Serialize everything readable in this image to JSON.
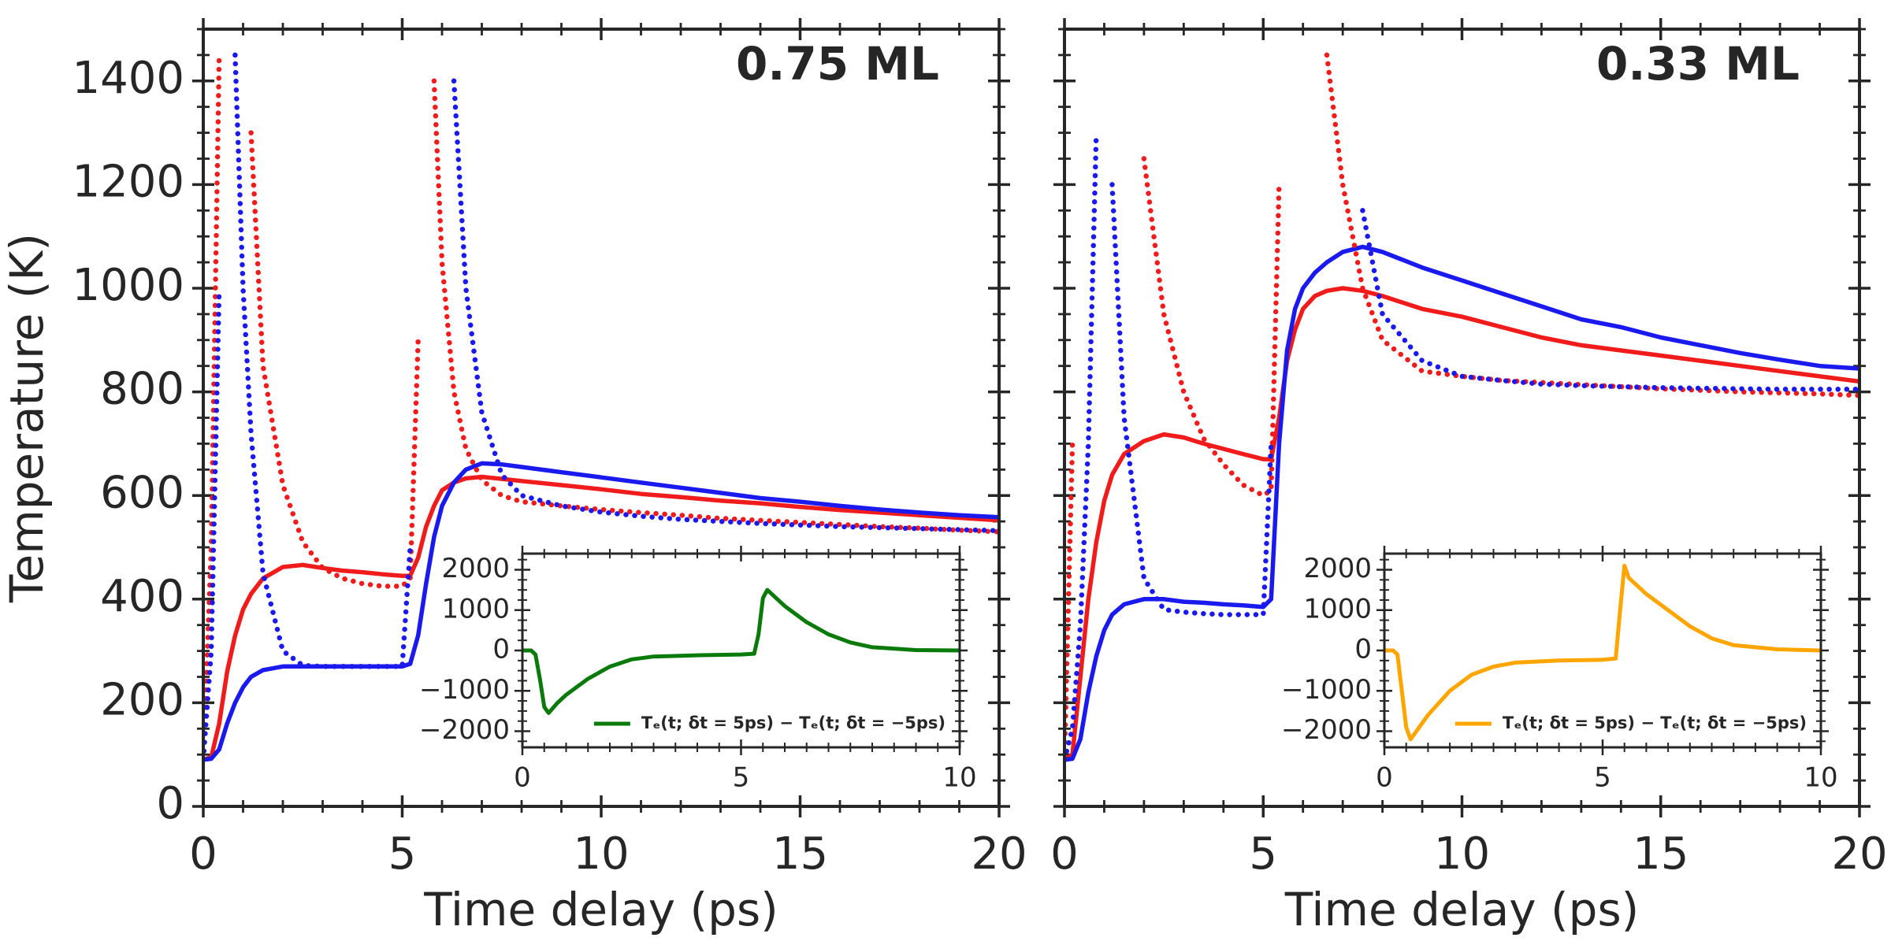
{
  "chart_data": [
    {
      "type": "line",
      "annotation": "0.75 ML",
      "xlabel": "Time delay (ps)",
      "ylabel": "Temperature (K)",
      "xlim": [
        0,
        20
      ],
      "ylim": [
        0,
        1500
      ],
      "xticks": [
        0,
        5,
        10,
        15,
        20
      ],
      "yticks": [
        0,
        200,
        400,
        600,
        800,
        1000,
        1200,
        1400
      ],
      "x": [
        0,
        0.2,
        0.4,
        0.6,
        0.8,
        1.0,
        1.2,
        1.5,
        2,
        2.5,
        3,
        3.5,
        4,
        4.5,
        5,
        5.2,
        5.4,
        5.6,
        5.8,
        6,
        6.3,
        6.6,
        7,
        7.5,
        8,
        9,
        10,
        11,
        12,
        13,
        14,
        15,
        16,
        17,
        18,
        19,
        20
      ],
      "series": [
        {
          "color": "#f01c1c",
          "style": "solid",
          "values": [
            90,
            95,
            160,
            260,
            330,
            380,
            410,
            440,
            462,
            466,
            460,
            455,
            452,
            448,
            445,
            445,
            480,
            540,
            580,
            610,
            625,
            633,
            636,
            632,
            628,
            620,
            612,
            603,
            597,
            590,
            585,
            578,
            572,
            567,
            562,
            557,
            552
          ]
        },
        {
          "color": "#1a1aee",
          "style": "solid",
          "values": [
            90,
            92,
            110,
            160,
            200,
            230,
            250,
            263,
            270,
            270,
            270,
            270,
            270,
            270,
            270,
            275,
            330,
            430,
            520,
            580,
            625,
            650,
            662,
            660,
            655,
            645,
            635,
            625,
            615,
            605,
            595,
            588,
            580,
            573,
            567,
            562,
            558
          ]
        },
        {
          "color": "#f01c1c",
          "style": "dotted",
          "values": [
            90,
            500,
            1450,
            null,
            null,
            null,
            1300,
            850,
            620,
            510,
            460,
            440,
            430,
            425,
            425,
            440,
            900,
            null,
            1400,
            1050,
            800,
            690,
            630,
            600,
            588,
            580,
            573,
            567,
            562,
            556,
            552,
            548,
            544,
            540,
            537,
            533,
            530
          ]
        },
        {
          "color": "#1a1aee",
          "style": "dotted",
          "values": [
            90,
            300,
            1000,
            null,
            1450,
            1000,
            720,
            450,
            300,
            272,
            270,
            270,
            270,
            270,
            270,
            500,
            null,
            null,
            null,
            null,
            1400,
            1000,
            760,
            640,
            600,
            580,
            568,
            560,
            554,
            550,
            546,
            543,
            540,
            538,
            536,
            534,
            532
          ]
        }
      ]
    },
    {
      "type": "line",
      "legend": "lower right",
      "xlim": [
        0,
        10
      ],
      "ylim": [
        -2400,
        2400
      ],
      "xticks": [
        0,
        5,
        10
      ],
      "yticks": [
        {
          "value": -2000,
          "label": "−2000"
        },
        {
          "value": -1000,
          "label": "−1000"
        },
        0,
        1000,
        2000
      ],
      "x": [
        0,
        0.2,
        0.3,
        0.4,
        0.5,
        0.6,
        0.8,
        1,
        1.5,
        2,
        2.5,
        3,
        4,
        5,
        5.3,
        5.4,
        5.5,
        5.6,
        6,
        6.5,
        7,
        7.5,
        8,
        9,
        10
      ],
      "series": [
        {
          "name": "Tₑ(t; δt = 5ps) − Tₑ(t; δt = −5ps)",
          "color": "#0a7a0a",
          "style": "solid",
          "values": [
            0,
            0,
            -100,
            -700,
            -1400,
            -1550,
            -1300,
            -1100,
            -700,
            -400,
            -220,
            -150,
            -120,
            -100,
            -80,
            400,
            1300,
            1500,
            1100,
            700,
            400,
            200,
            80,
            10,
            0
          ]
        }
      ]
    },
    {
      "type": "line",
      "annotation": "0.33 ML",
      "xlabel": "Time delay (ps)",
      "xlim": [
        0,
        20
      ],
      "xticks": [
        0,
        5,
        10,
        15,
        20
      ],
      "x": [
        0,
        0.2,
        0.4,
        0.6,
        0.8,
        1.0,
        1.2,
        1.5,
        2,
        2.5,
        3,
        3.5,
        4,
        4.5,
        5,
        5.2,
        5.4,
        5.6,
        5.8,
        6,
        6.3,
        6.6,
        7,
        7.5,
        8,
        9,
        10,
        11,
        12,
        13,
        14,
        15,
        16,
        17,
        18,
        19,
        20
      ],
      "series": [
        {
          "color": "#f01c1c",
          "style": "solid",
          "values": [
            90,
            100,
            250,
            400,
            510,
            590,
            640,
            680,
            705,
            718,
            712,
            700,
            690,
            680,
            670,
            670,
            750,
            860,
            920,
            960,
            985,
            995,
            1000,
            995,
            985,
            960,
            945,
            925,
            905,
            890,
            880,
            870,
            860,
            850,
            840,
            830,
            820
          ]
        },
        {
          "color": "#1a1aee",
          "style": "solid",
          "values": [
            90,
            92,
            130,
            220,
            290,
            340,
            370,
            390,
            400,
            400,
            395,
            393,
            390,
            388,
            385,
            400,
            700,
            880,
            960,
            1000,
            1030,
            1050,
            1070,
            1080,
            1070,
            1040,
            1015,
            990,
            965,
            940,
            925,
            905,
            890,
            875,
            862,
            850,
            845
          ]
        },
        {
          "color": "#f01c1c",
          "style": "dotted",
          "values": [
            90,
            700,
            null,
            null,
            null,
            null,
            null,
            null,
            1250,
            950,
            800,
            710,
            660,
            620,
            600,
            610,
            1200,
            null,
            null,
            null,
            null,
            1450,
            1200,
            1000,
            900,
            840,
            830,
            822,
            818,
            814,
            810,
            806,
            803,
            800,
            798,
            796,
            793
          ]
        },
        {
          "color": "#1a1aee",
          "style": "dotted",
          "values": [
            90,
            150,
            350,
            700,
            1300,
            null,
            1200,
            750,
            440,
            380,
            375,
            372,
            370,
            370,
            370,
            700,
            null,
            null,
            null,
            null,
            null,
            null,
            null,
            1150,
            950,
            860,
            830,
            822,
            815,
            812,
            810,
            808,
            807,
            806,
            805,
            805,
            805
          ]
        }
      ]
    },
    {
      "type": "line",
      "legend": "lower right",
      "xlim": [
        0,
        10
      ],
      "ylim": [
        -2400,
        2400
      ],
      "xticks": [
        0,
        5,
        10
      ],
      "yticks": [
        {
          "value": -2000,
          "label": "−2000"
        },
        {
          "value": -1000,
          "label": "−1000"
        },
        0,
        1000,
        2000
      ],
      "x": [
        0,
        0.2,
        0.3,
        0.4,
        0.5,
        0.6,
        0.8,
        1,
        1.5,
        2,
        2.5,
        3,
        4,
        5,
        5.3,
        5.4,
        5.5,
        5.6,
        6,
        6.5,
        7,
        7.5,
        8,
        9,
        10
      ],
      "series": [
        {
          "name": "Tₑ(t; δt = 5ps) − Tₑ(t; δt = −5ps)",
          "color": "#ffa500",
          "style": "solid",
          "values": [
            0,
            0,
            -100,
            -1000,
            -1900,
            -2200,
            -1900,
            -1600,
            -1000,
            -600,
            -400,
            -300,
            -250,
            -230,
            -200,
            1000,
            2100,
            1800,
            1400,
            1000,
            600,
            300,
            130,
            30,
            0
          ]
        }
      ]
    }
  ]
}
